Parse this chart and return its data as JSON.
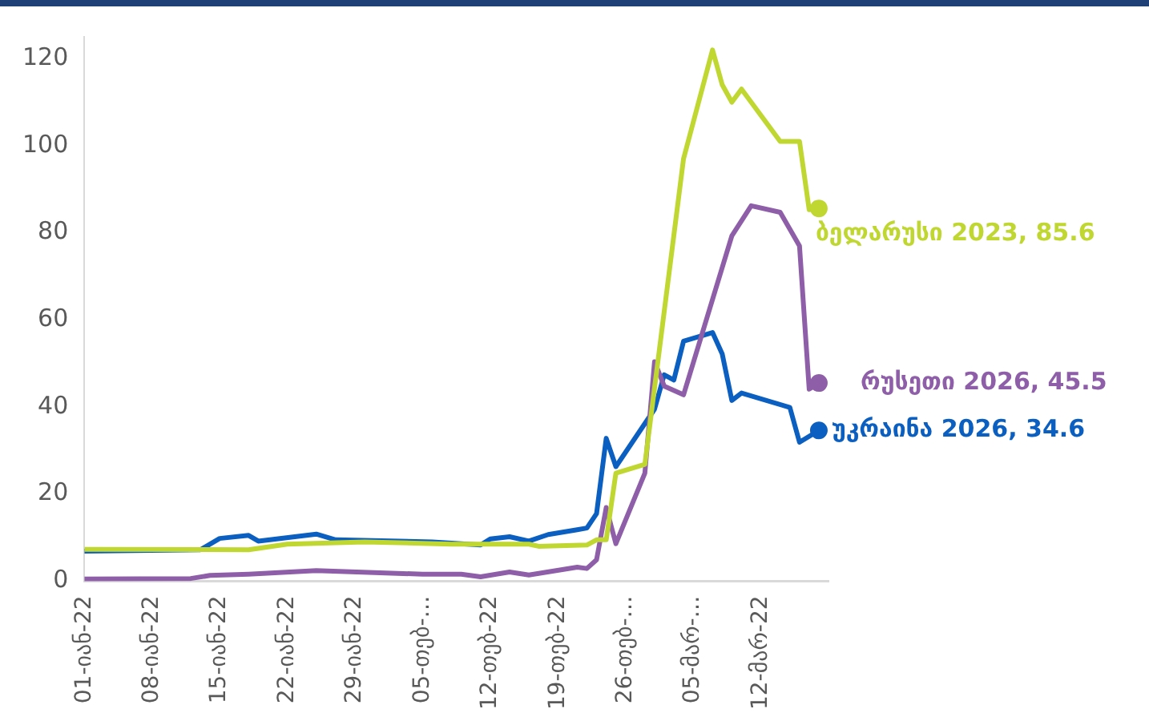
{
  "chart_data": {
    "type": "line",
    "xlim": [
      "--01-01",
      "--03-19"
    ],
    "xticks": [
      {
        "value": "--01-01",
        "label": "01-იან-22"
      },
      {
        "value": "--01-08",
        "label": "08-იან-22"
      },
      {
        "value": "--01-15",
        "label": "15-იან-22"
      },
      {
        "value": "--01-22",
        "label": "22-იან-22"
      },
      {
        "value": "--01-29",
        "label": "29-იან-22"
      },
      {
        "value": "--02-05",
        "label": "05-თებ-…"
      },
      {
        "value": "--02-12",
        "label": "12-თებ-22"
      },
      {
        "value": "--02-19",
        "label": "19-თებ-22"
      },
      {
        "value": "--02-26",
        "label": "26-თებ-…"
      },
      {
        "value": "--03-05",
        "label": "05-მარ-…"
      },
      {
        "value": "--03-12",
        "label": "12-მარ-22"
      }
    ],
    "ylim": [
      0,
      125
    ],
    "yticks": [
      0,
      20,
      40,
      60,
      80,
      100,
      120
    ],
    "grid": false,
    "legend": false,
    "series": [
      {
        "color": "#bfd730",
        "x": [
          "--01-01",
          "--01-18",
          "--01-22",
          "--01-30",
          "--02-08",
          "--02-16",
          "--02-17",
          "--02-22",
          "--02-23",
          "--02-24",
          "--02-25",
          "--02-28",
          "--03-04",
          "--03-07",
          "--03-08",
          "--03-09",
          "--03-10",
          "--03-14",
          "--03-16",
          "--03-17",
          "--03-18"
        ],
        "values": [
          7.3,
          7.2,
          8.5,
          9,
          8.5,
          8.5,
          8,
          8.3,
          9.5,
          9.5,
          24.8,
          26.8,
          97,
          122,
          114,
          110,
          113,
          101,
          101,
          85.3,
          85.6
        ]
      },
      {
        "color": "#8e5fa8",
        "x": [
          "--01-01",
          "--01-12",
          "--01-14",
          "--01-18",
          "--01-25",
          "--02-05",
          "--02-09",
          "--02-11",
          "--02-14",
          "--02-16",
          "--02-21",
          "--02-22",
          "--02-23",
          "--02-24",
          "--02-25",
          "--02-28",
          "--03-01",
          "--03-02",
          "--03-04",
          "--03-09",
          "--03-11",
          "--03-14",
          "--03-16",
          "--03-17",
          "--03-18"
        ],
        "values": [
          0.5,
          0.6,
          1.3,
          1.6,
          2.4,
          1.6,
          1.6,
          1,
          2.1,
          1.4,
          3.2,
          2.9,
          4.9,
          16.9,
          8.6,
          24.8,
          50.4,
          44.8,
          42.8,
          79.3,
          86.2,
          84.7,
          77,
          44.1,
          45.5
        ]
      },
      {
        "color": "#0a5fc0",
        "x": [
          "--01-01",
          "--01-13",
          "--01-15",
          "--01-18",
          "--01-19",
          "--01-25",
          "--01-27",
          "--02-06",
          "--02-11",
          "--02-12",
          "--02-14",
          "--02-16",
          "--02-18",
          "--02-21",
          "--02-22",
          "--02-23",
          "--02-24",
          "--02-25",
          "--03-01",
          "--03-02",
          "--03-03",
          "--03-04",
          "--03-07",
          "--03-08",
          "--03-09",
          "--03-10",
          "--03-15",
          "--03-16",
          "--03-18"
        ],
        "values": [
          6.9,
          7.2,
          9.8,
          10.5,
          9.2,
          10.8,
          9.5,
          9,
          8.3,
          9.7,
          10.2,
          9.2,
          10.7,
          11.8,
          12.2,
          15.5,
          32.8,
          26.3,
          39.5,
          47.4,
          46.2,
          55.1,
          57.1,
          52.2,
          41.5,
          43.2,
          39.9,
          31.9,
          34.6
        ]
      }
    ],
    "annotations": [
      {
        "text": "ბელარუსი 2023, 85.6",
        "x": "--03-18",
        "y": 85.6
      },
      {
        "text": "რუსეთი 2026, 45.5",
        "x": "--03-18",
        "y": 45.5
      },
      {
        "text": "უკრაინა 2026, 34.6",
        "x": "--03-18",
        "y": 34.6
      }
    ]
  }
}
